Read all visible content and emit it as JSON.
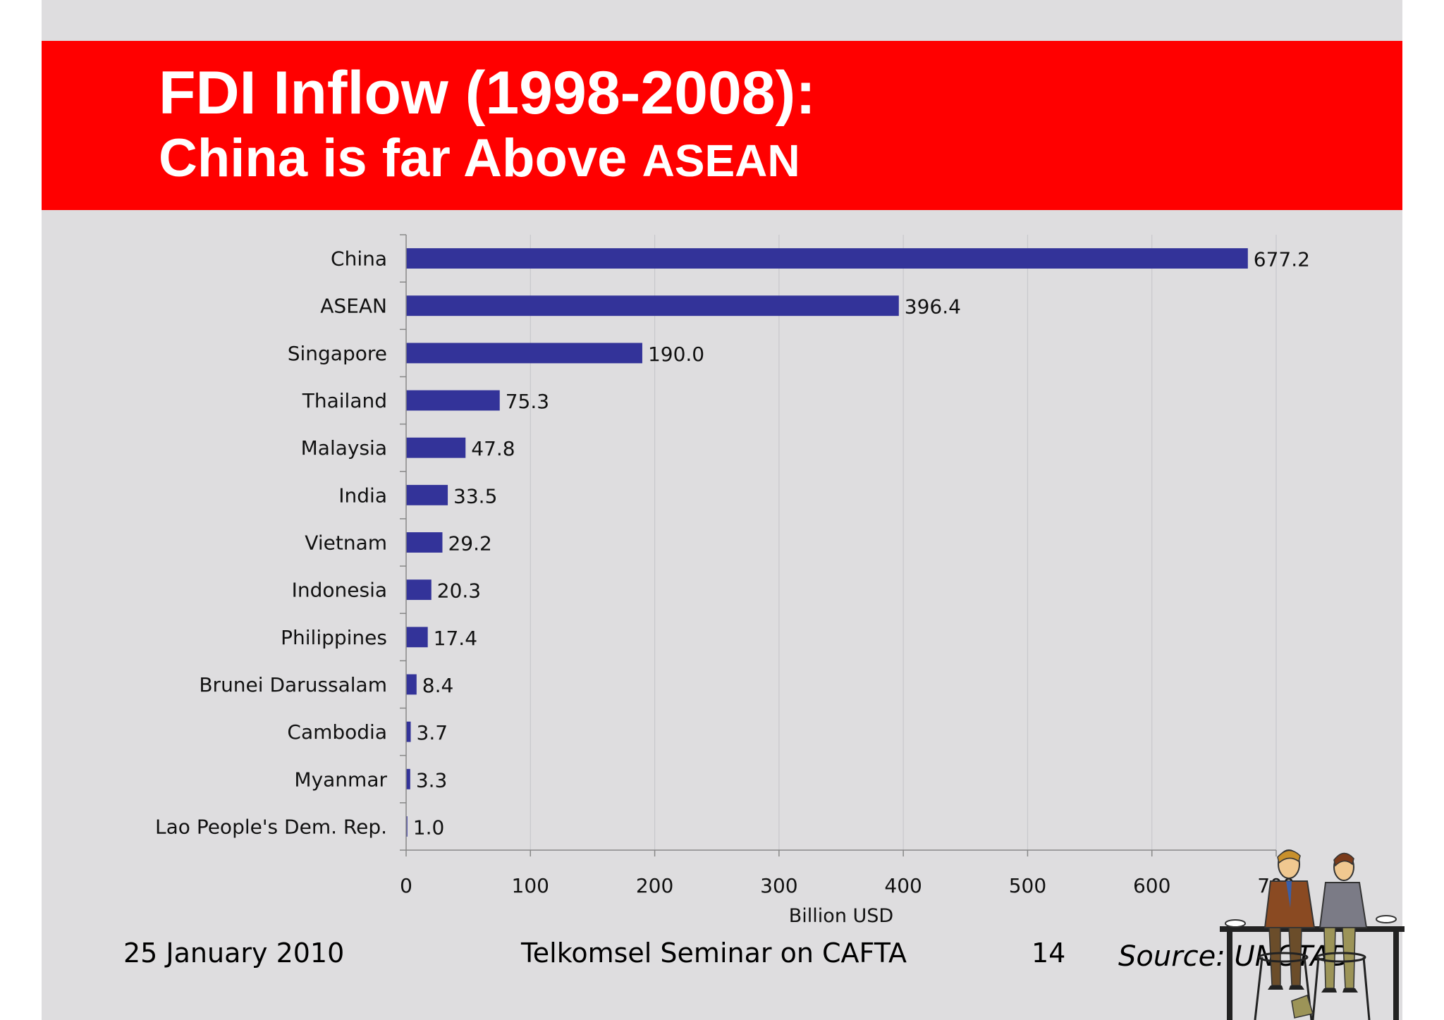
{
  "slide": {
    "title_line1": "FDI Inflow (1998-2008):",
    "title_line2_main": "China is far Above ",
    "title_line2_tail": "ASEAN"
  },
  "footer": {
    "date": "25 January 2010",
    "event": "Telkomsel Seminar on CAFTA",
    "page_number": "14",
    "source": "Source: UNCTAD"
  },
  "colors": {
    "title_band": "#ff0000",
    "bar": "#333399",
    "background": "#dedddf",
    "gridline": "#c8c8cc"
  },
  "chart_data": {
    "type": "bar",
    "orientation": "horizontal",
    "categories": [
      "China",
      "ASEAN",
      "Singapore",
      "Thailand",
      "Malaysia",
      "India",
      "Vietnam",
      "Indonesia",
      "Philippines",
      "Brunei Darussalam",
      "Cambodia",
      "Myanmar",
      "Lao People's Dem. Rep."
    ],
    "values": [
      677.2,
      396.4,
      190.0,
      75.3,
      47.8,
      33.5,
      29.2,
      20.3,
      17.4,
      8.4,
      3.7,
      3.3,
      1.0
    ],
    "data_labels": [
      "677.2",
      "396.4",
      "190.0",
      "75.3",
      "47.8",
      "33.5",
      "29.2",
      "20.3",
      "17.4",
      "8.4",
      "3.7",
      "3.3",
      "1.0"
    ],
    "xlabel": "Billion USD",
    "xlim": [
      0,
      700
    ],
    "x_ticks": [
      0,
      100,
      200,
      300,
      400,
      500,
      600,
      700
    ],
    "x_tick_labels": [
      "0",
      "100",
      "200",
      "300",
      "400",
      "500",
      "600",
      "700"
    ],
    "grid": true,
    "legend": "none"
  }
}
